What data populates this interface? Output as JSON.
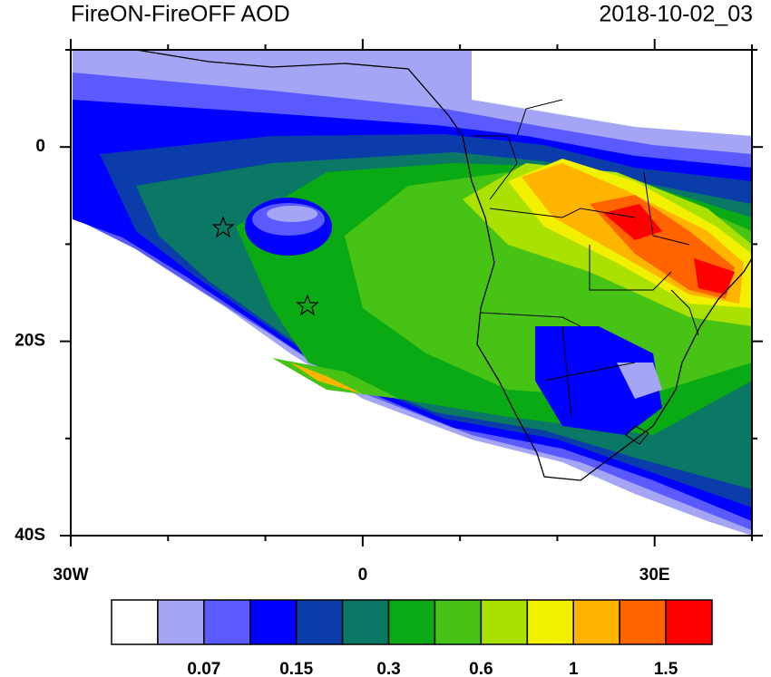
{
  "chart_data": {
    "type": "map",
    "title": "FireON-FireOFF AOD",
    "subtitle": "2018-10-02_03",
    "xlim": [
      -30,
      40
    ],
    "ylim": [
      -40,
      10
    ],
    "xticks": [
      {
        "value": -30,
        "label": "30W"
      },
      {
        "value": 0,
        "label": "0"
      },
      {
        "value": 30,
        "label": "30E"
      }
    ],
    "yticks": [
      {
        "value": 0,
        "label": "0"
      },
      {
        "value": -20,
        "label": "20S"
      },
      {
        "value": -40,
        "label": "40S"
      }
    ],
    "xminorticks": [
      -20,
      -10,
      10,
      20,
      40
    ],
    "yminorticks": [
      10,
      -10,
      -30
    ],
    "colorbar": {
      "colors": [
        "#ffffff",
        "#a5a5f5",
        "#5a5aff",
        "#0000ff",
        "#0a3caa",
        "#0a7864",
        "#0aaa14",
        "#46c314",
        "#aae100",
        "#f0f000",
        "#ffb400",
        "#ff6400",
        "#ff0000"
      ],
      "ticks": [
        0.07,
        0.15,
        0.3,
        0.6,
        1,
        1.5
      ]
    }
  }
}
